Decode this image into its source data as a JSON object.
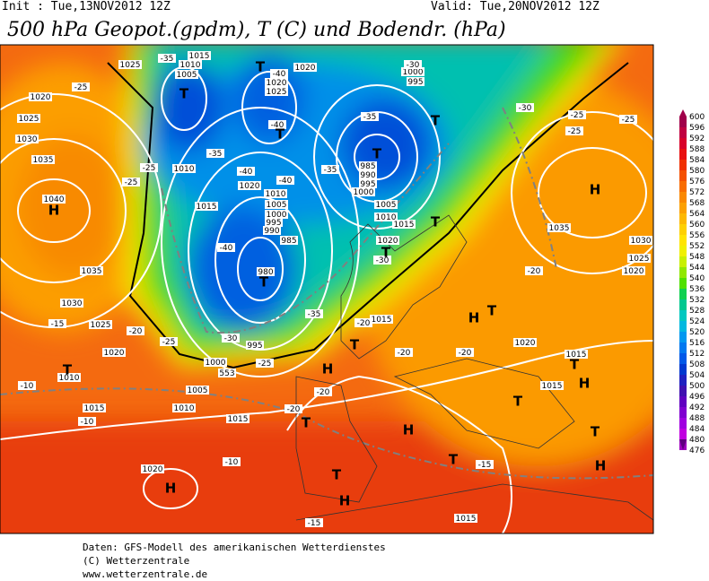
{
  "header": {
    "init": "Init : Tue,13NOV2012 12Z",
    "valid": "Valid: Tue,20NOV2012 12Z",
    "title": "500 hPa Geopot.(gpdm), T (C) und Bodendr. (hPa)"
  },
  "colorbar": {
    "values": [
      600,
      596,
      592,
      588,
      584,
      580,
      576,
      572,
      568,
      564,
      560,
      556,
      552,
      548,
      544,
      540,
      536,
      532,
      528,
      524,
      520,
      516,
      512,
      508,
      504,
      500,
      496,
      492,
      488,
      484,
      480,
      476
    ],
    "colors": [
      "#a0004a",
      "#c00040",
      "#d8002a",
      "#e81010",
      "#f03000",
      "#f45000",
      "#f86c00",
      "#fa8800",
      "#fca000",
      "#fdb800",
      "#fed000",
      "#ffe400",
      "#f0f000",
      "#c8f000",
      "#90e800",
      "#50e000",
      "#10d050",
      "#00c890",
      "#00c8c0",
      "#00b8e0",
      "#0098f0",
      "#0078f0",
      "#0058e8",
      "#0038d0",
      "#2020c0",
      "#4010b0",
      "#6000c0",
      "#8000d0",
      "#a000e0",
      "#c000e0",
      "#a000c0",
      "#600080"
    ]
  },
  "map": {
    "labels": [
      "1025",
      "1015",
      "1010",
      "1005",
      "1020",
      "1020",
      "1025",
      "1000",
      "995",
      "1020",
      "1025",
      "1030",
      "1035",
      "1040",
      "1010",
      "1015",
      "1020",
      "1010",
      "1005",
      "1000",
      "995",
      "990",
      "985",
      "980",
      "995",
      "1000",
      "1005",
      "1010",
      "1015",
      "1015",
      "1010",
      "1020",
      "1025",
      "1030",
      "1035",
      "985",
      "990",
      "995",
      "1000",
      "1005",
      "1010",
      "1015",
      "1020",
      "1015",
      "1020",
      "1015",
      "1015",
      "1035",
      "1030",
      "1025",
      "1020",
      "1020",
      "1015",
      "-25",
      "-35",
      "-40",
      "-40",
      "-35",
      "-40",
      "-40",
      "-35",
      "-30",
      "-35",
      "-30",
      "-25",
      "-25",
      "-25",
      "-25",
      "-25",
      "-30",
      "-35",
      "-20",
      "-20",
      "-20",
      "-20",
      "-20",
      "-20",
      "-30",
      "-25",
      "-20",
      "-15",
      "-10",
      "-10",
      "-10",
      "-15",
      "-15",
      "-40",
      "-25",
      "T",
      "T",
      "T",
      "T",
      "T",
      "T",
      "T",
      "T",
      "H",
      "H",
      "H",
      "T",
      "T",
      "H",
      "T",
      "T",
      "H",
      "T",
      "T",
      "H",
      "T",
      "T",
      "H",
      "T",
      "H",
      "H",
      "553"
    ]
  },
  "footer": [
    "Daten: GFS-Modell des amerikanischen Wetterdienstes",
    "(C) Wetterzentrale",
    "www.wetterzentrale.de"
  ]
}
